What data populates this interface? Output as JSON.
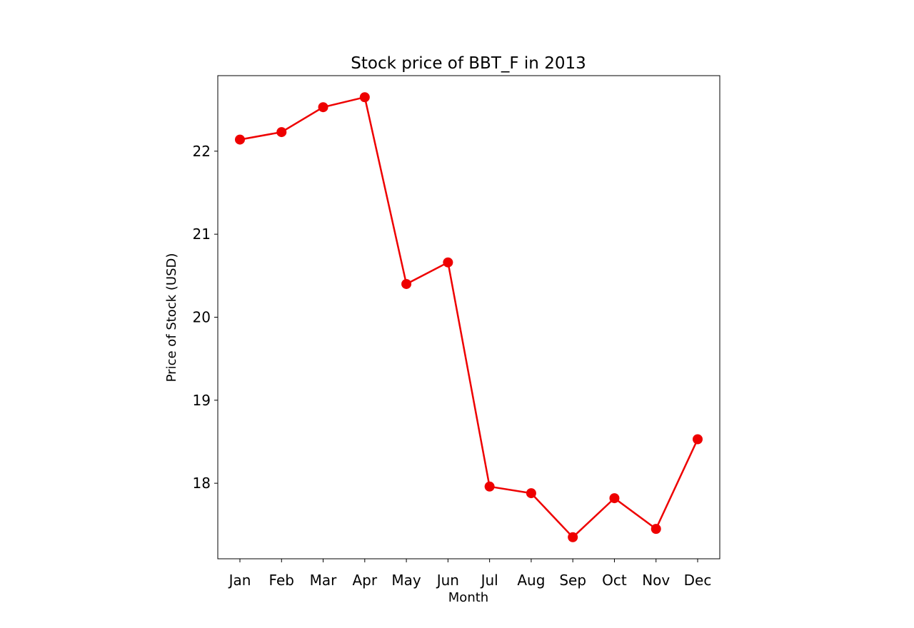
{
  "chart_data": {
    "type": "line",
    "title": "Stock price of BBT_F in 2013",
    "xlabel": "Month",
    "ylabel": "Price of Stock (USD)",
    "categories": [
      "Jan",
      "Feb",
      "Mar",
      "Apr",
      "May",
      "Jun",
      "Jul",
      "Aug",
      "Sep",
      "Oct",
      "Nov",
      "Dec"
    ],
    "values": [
      22.14,
      22.23,
      22.53,
      22.65,
      20.4,
      20.66,
      17.96,
      17.88,
      17.35,
      17.82,
      17.45,
      18.53
    ],
    "ylim": [
      17.09,
      22.91
    ],
    "yticks": [
      18,
      19,
      20,
      21,
      22
    ],
    "grid": false,
    "color": "#ee0000"
  }
}
